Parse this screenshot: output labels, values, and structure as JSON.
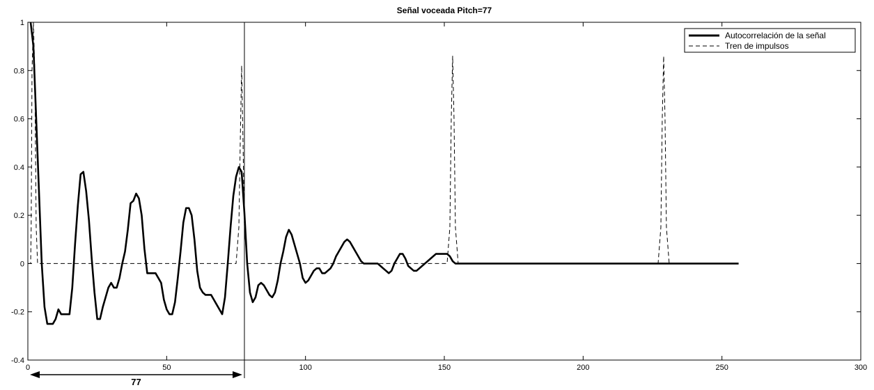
{
  "chart_data": {
    "type": "line",
    "title": "Señal voceada Pitch=77",
    "xlabel": "",
    "ylabel": "",
    "xlim": [
      0,
      300
    ],
    "ylim": [
      -0.4,
      1
    ],
    "xticks": [
      0,
      50,
      100,
      150,
      200,
      250,
      300
    ],
    "yticks": [
      -0.4,
      -0.2,
      0,
      0.2,
      0.4,
      0.6,
      0.8,
      1
    ],
    "grid": false,
    "legend_position": "top-right",
    "series": [
      {
        "name": "Autocorrelación de la señal",
        "style": "solid",
        "color": "#000000",
        "x": [
          1,
          2,
          3,
          4,
          5,
          6,
          7,
          8,
          9,
          10,
          11,
          12,
          13,
          14,
          15,
          16,
          17,
          18,
          19,
          20,
          21,
          22,
          23,
          24,
          25,
          26,
          27,
          28,
          29,
          30,
          31,
          32,
          33,
          34,
          35,
          36,
          37,
          38,
          39,
          40,
          41,
          42,
          43,
          44,
          45,
          46,
          47,
          48,
          49,
          50,
          51,
          52,
          53,
          54,
          55,
          56,
          57,
          58,
          59,
          60,
          61,
          62,
          63,
          64,
          65,
          66,
          67,
          68,
          69,
          70,
          71,
          72,
          73,
          74,
          75,
          76,
          77,
          78,
          79,
          80,
          81,
          82,
          83,
          84,
          85,
          86,
          87,
          88,
          89,
          90,
          91,
          92,
          93,
          94,
          95,
          96,
          97,
          98,
          99,
          100,
          101,
          102,
          103,
          104,
          105,
          106,
          107,
          108,
          109,
          110,
          111,
          112,
          113,
          114,
          115,
          116,
          117,
          118,
          119,
          120,
          121,
          122,
          123,
          124,
          125,
          126,
          127,
          128,
          129,
          130,
          131,
          132,
          133,
          134,
          135,
          136,
          137,
          138,
          139,
          140,
          141,
          142,
          143,
          144,
          145,
          146,
          147,
          148,
          149,
          150,
          151,
          152,
          153,
          154,
          155,
          160,
          180,
          200,
          220,
          240,
          256
        ],
        "y": [
          1.0,
          0.9,
          0.6,
          0.3,
          0.0,
          -0.18,
          -0.25,
          -0.25,
          -0.25,
          -0.23,
          -0.19,
          -0.21,
          -0.21,
          -0.21,
          -0.21,
          -0.1,
          0.08,
          0.24,
          0.37,
          0.38,
          0.3,
          0.18,
          0.02,
          -0.12,
          -0.23,
          -0.23,
          -0.18,
          -0.14,
          -0.1,
          -0.08,
          -0.1,
          -0.1,
          -0.06,
          0.0,
          0.05,
          0.14,
          0.25,
          0.26,
          0.29,
          0.27,
          0.2,
          0.06,
          -0.04,
          -0.04,
          -0.04,
          -0.04,
          -0.06,
          -0.08,
          -0.15,
          -0.19,
          -0.21,
          -0.21,
          -0.16,
          -0.06,
          0.05,
          0.17,
          0.23,
          0.23,
          0.2,
          0.1,
          -0.03,
          -0.1,
          -0.12,
          -0.13,
          -0.13,
          -0.13,
          -0.15,
          -0.17,
          -0.19,
          -0.21,
          -0.14,
          0.0,
          0.15,
          0.28,
          0.36,
          0.4,
          0.38,
          0.21,
          0.0,
          -0.12,
          -0.16,
          -0.14,
          -0.09,
          -0.08,
          -0.09,
          -0.11,
          -0.13,
          -0.14,
          -0.12,
          -0.07,
          0.0,
          0.05,
          0.11,
          0.14,
          0.12,
          0.08,
          0.04,
          0.0,
          -0.06,
          -0.08,
          -0.07,
          -0.05,
          -0.03,
          -0.02,
          -0.02,
          -0.04,
          -0.04,
          -0.03,
          -0.02,
          0.0,
          0.03,
          0.05,
          0.07,
          0.09,
          0.1,
          0.09,
          0.07,
          0.05,
          0.03,
          0.01,
          0.0,
          0.0,
          0.0,
          0.0,
          0.0,
          0.0,
          -0.01,
          -0.02,
          -0.03,
          -0.04,
          -0.03,
          0.0,
          0.02,
          0.04,
          0.04,
          0.02,
          -0.01,
          -0.02,
          -0.03,
          -0.03,
          -0.02,
          -0.01,
          0.0,
          0.01,
          0.02,
          0.03,
          0.04,
          0.04,
          0.04,
          0.04,
          0.04,
          0.03,
          0.01,
          0.0,
          0.0,
          0.0,
          0.0,
          0.0,
          0.0,
          0.0,
          0.0
        ]
      },
      {
        "name": "Tren de impulsos",
        "style": "dashed",
        "color": "#000000",
        "x": [
          0,
          1,
          1.2,
          1.5,
          2,
          2.5,
          3,
          3.5,
          75,
          76,
          76.5,
          77,
          77.5,
          78,
          79,
          151,
          152,
          152.5,
          153,
          153.5,
          154,
          155,
          227,
          228,
          228.5,
          229,
          229.5,
          230,
          231,
          256
        ],
        "y": [
          0.0,
          0.0,
          0.15,
          0.8,
          1.0,
          0.8,
          0.15,
          0.0,
          0.0,
          0.15,
          0.5,
          0.82,
          0.5,
          0.15,
          0.0,
          0.0,
          0.15,
          0.6,
          0.86,
          0.6,
          0.15,
          0.0,
          0.0,
          0.15,
          0.6,
          0.86,
          0.6,
          0.15,
          0.0,
          0.0
        ]
      }
    ],
    "annotations": {
      "vertical_line_x": 78,
      "arrow_from_x": 0,
      "arrow_to_x": 78,
      "arrow_label": "77"
    }
  }
}
